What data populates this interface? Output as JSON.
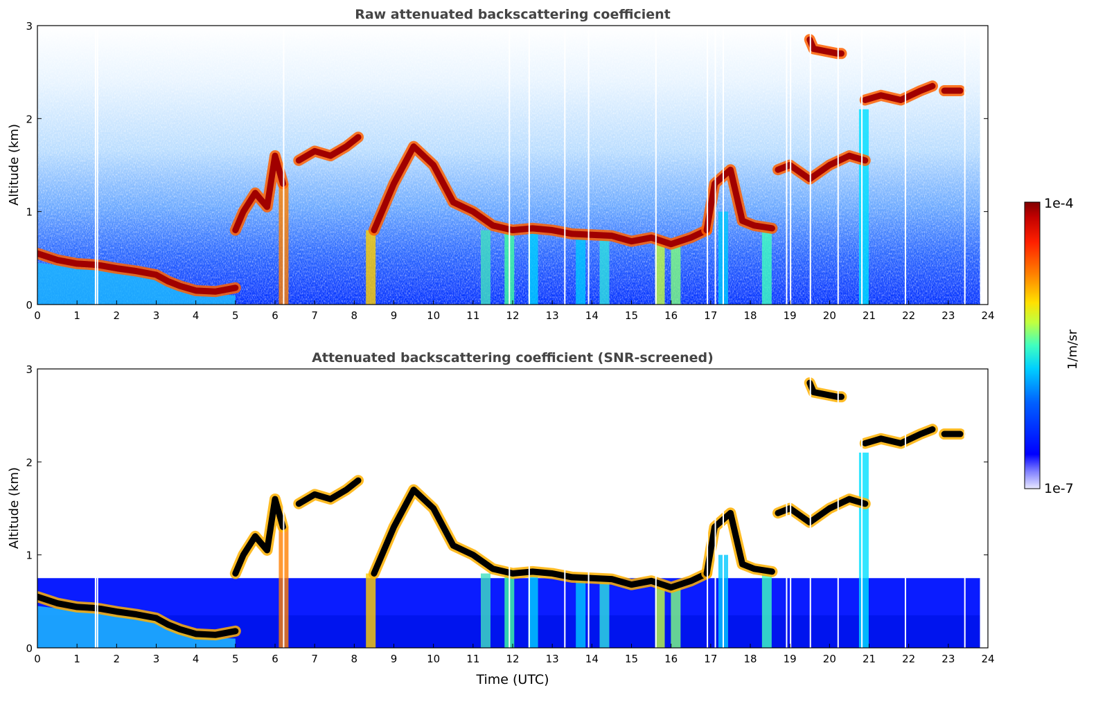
{
  "chart_data": [
    {
      "type": "heatmap",
      "title": "Raw attenuated backscattering coefficient",
      "xlabel": "",
      "ylabel": "Altitude (km)",
      "xlim": [
        0,
        24
      ],
      "ylim": [
        0,
        3
      ],
      "xticks": [
        "0",
        "1",
        "2",
        "3",
        "4",
        "5",
        "6",
        "7",
        "8",
        "9",
        "10",
        "11",
        "12",
        "13",
        "14",
        "15",
        "16",
        "17",
        "18",
        "19",
        "20",
        "21",
        "22",
        "23",
        "24"
      ],
      "yticks": [
        "0",
        "1",
        "2",
        "3"
      ],
      "color_scale": "jet, log",
      "data_end_hour": 23.8,
      "cloud_layers": [
        {
          "x": [
            0,
            0.5,
            1,
            1.4,
            1.6,
            2,
            2.5,
            3,
            3.3,
            3.6,
            4,
            4.5,
            5
          ],
          "y": [
            0.55,
            0.48,
            0.44,
            0.43,
            0.42,
            0.39,
            0.36,
            0.32,
            0.25,
            0.2,
            0.15,
            0.14,
            0.18
          ]
        },
        {
          "x": [
            5.0,
            5.2,
            5.5,
            5.8,
            6.0,
            6.2
          ],
          "y": [
            0.8,
            1.0,
            1.2,
            1.05,
            1.6,
            1.3
          ]
        },
        {
          "x": [
            6.6,
            7.0,
            7.4,
            7.8,
            8.1
          ],
          "y": [
            1.55,
            1.65,
            1.6,
            1.7,
            1.8
          ]
        },
        {
          "x": [
            8.5,
            9.0,
            9.5,
            10.0,
            10.5,
            11.0,
            11.5,
            12.0,
            12.5,
            13.0,
            13.5,
            14.0,
            14.5,
            15.0,
            15.5,
            16.0,
            16.5,
            16.9
          ],
          "y": [
            0.8,
            1.3,
            1.7,
            1.5,
            1.1,
            1.0,
            0.85,
            0.8,
            0.82,
            0.8,
            0.76,
            0.75,
            0.74,
            0.68,
            0.72,
            0.65,
            0.72,
            0.8
          ]
        },
        {
          "x": [
            16.9,
            17.1,
            17.5,
            17.8,
            18.1,
            18.55
          ],
          "y": [
            0.8,
            1.3,
            1.45,
            0.9,
            0.85,
            0.82
          ]
        },
        {
          "x": [
            18.7,
            19.0,
            19.5,
            20.0,
            20.5,
            20.9
          ],
          "y": [
            1.45,
            1.5,
            1.35,
            1.5,
            1.6,
            1.55
          ]
        },
        {
          "x": [
            20.9,
            21.3,
            21.8,
            22.3,
            22.6
          ],
          "y": [
            2.2,
            2.25,
            2.2,
            2.3,
            2.35
          ]
        },
        {
          "x": [
            22.9,
            23.3
          ],
          "y": [
            2.3,
            2.3
          ]
        },
        {
          "x": [
            19.5,
            19.6,
            20.2,
            20.3
          ],
          "y": [
            2.85,
            2.75,
            2.7,
            2.7
          ]
        }
      ]
    },
    {
      "type": "heatmap",
      "title": "Attenuated backscattering coefficient (SNR-screened)",
      "xlabel": "Time (UTC)",
      "ylabel": "Altitude (km)",
      "xlim": [
        0,
        24
      ],
      "ylim": [
        0,
        3
      ],
      "xticks": [
        "0",
        "1",
        "2",
        "3",
        "4",
        "5",
        "6",
        "7",
        "8",
        "9",
        "10",
        "11",
        "12",
        "13",
        "14",
        "15",
        "16",
        "17",
        "18",
        "19",
        "20",
        "21",
        "22",
        "23",
        "24"
      ],
      "yticks": [
        "0",
        "1",
        "2",
        "3"
      ],
      "color_scale": "jet, log",
      "screened_top_km": 0.75
    }
  ],
  "colorbar": {
    "label": "1/m/sr",
    "max_label": "1e-4",
    "min_label": "1e-7",
    "colors": [
      "#0000ff",
      "#0080ff",
      "#00e0ff",
      "#40ffc0",
      "#c0ff40",
      "#ffe000",
      "#ff8000",
      "#ff2000",
      "#c00000",
      "#800000"
    ]
  }
}
